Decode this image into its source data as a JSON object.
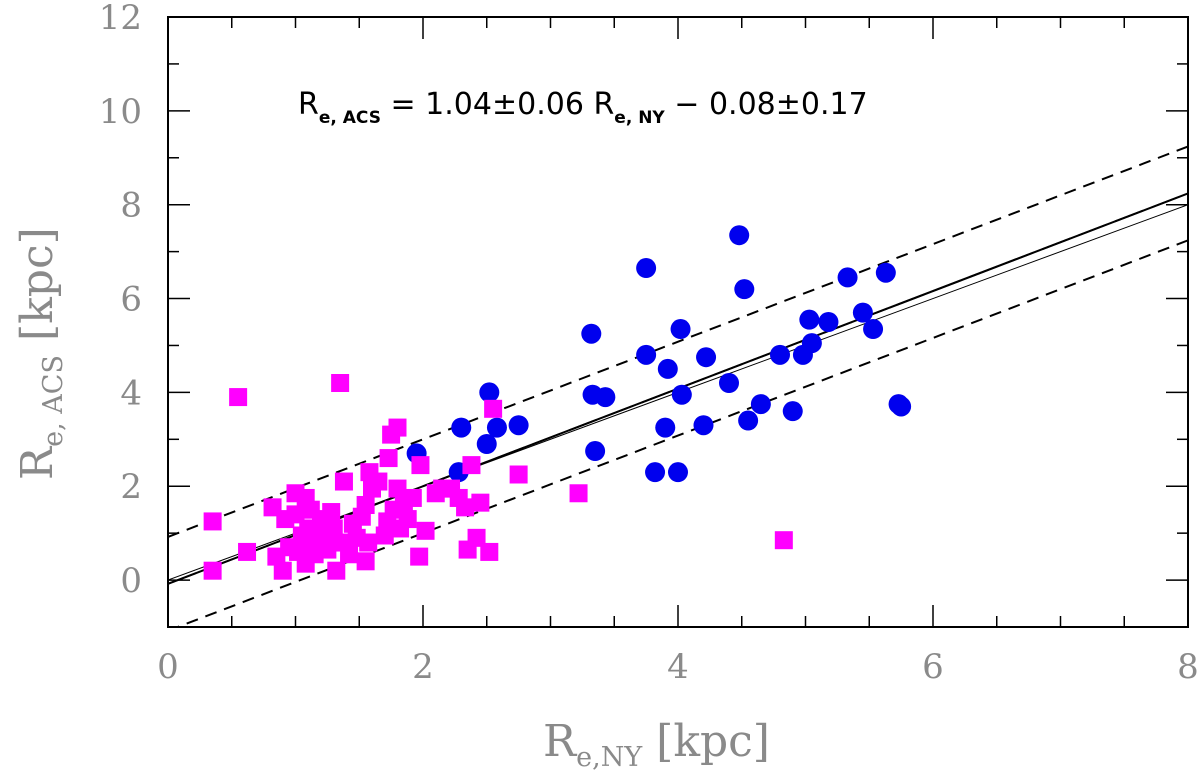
{
  "chart_data": {
    "type": "scatter",
    "xlabel": {
      "main": "R",
      "sub": "e,NY",
      "unit": "[kpc]"
    },
    "ylabel": {
      "main": "R",
      "sub": "e, ACS",
      "unit": "[kpc]"
    },
    "xlim": [
      0,
      8
    ],
    "ylim": [
      -1,
      12
    ],
    "x_ticks": [
      0,
      2,
      4,
      6,
      8
    ],
    "y_ticks": [
      0,
      2,
      4,
      6,
      8,
      10,
      12
    ],
    "colors": {
      "blue": "#0000ee",
      "magenta": "#ff00ff",
      "axis": "#000000"
    },
    "annotation": {
      "lhs": "R",
      "lhs_sub": "e, ACS",
      "mid": " = 1.04±0.06 R",
      "mid_sub": "e, NY",
      "rhs": " − 0.08±0.17"
    },
    "lines": [
      {
        "name": "fit",
        "style": "solid",
        "slope": 1.04,
        "intercept": -0.08
      },
      {
        "name": "one-to-one",
        "style": "thin",
        "slope": 1.0,
        "intercept": 0.0
      },
      {
        "name": "fit-long-dash",
        "style": "longdash",
        "slope": 1.04,
        "intercept": -0.08
      },
      {
        "name": "upper-bound",
        "style": "dashed",
        "slope": 1.04,
        "intercept": 0.92
      },
      {
        "name": "lower-bound",
        "style": "dashed",
        "slope": 1.04,
        "intercept": -1.08
      }
    ],
    "series": [
      {
        "name": "blue-circles",
        "marker": "circle",
        "color": "#0000ee",
        "points": [
          [
            1.95,
            2.7
          ],
          [
            2.28,
            2.3
          ],
          [
            2.3,
            3.25
          ],
          [
            2.5,
            2.9
          ],
          [
            2.52,
            4.0
          ],
          [
            2.58,
            3.25
          ],
          [
            2.75,
            3.3
          ],
          [
            3.32,
            5.25
          ],
          [
            3.33,
            3.95
          ],
          [
            3.35,
            2.75
          ],
          [
            3.43,
            3.9
          ],
          [
            3.75,
            6.65
          ],
          [
            3.75,
            4.8
          ],
          [
            3.82,
            2.3
          ],
          [
            3.9,
            3.25
          ],
          [
            3.92,
            4.5
          ],
          [
            4.0,
            2.3
          ],
          [
            4.02,
            5.35
          ],
          [
            4.03,
            3.95
          ],
          [
            4.2,
            3.3
          ],
          [
            4.22,
            4.75
          ],
          [
            4.4,
            4.2
          ],
          [
            4.48,
            7.35
          ],
          [
            4.52,
            6.2
          ],
          [
            4.55,
            3.4
          ],
          [
            4.65,
            3.75
          ],
          [
            4.8,
            4.8
          ],
          [
            4.9,
            3.6
          ],
          [
            4.98,
            4.8
          ],
          [
            5.03,
            5.55
          ],
          [
            5.05,
            5.05
          ],
          [
            5.18,
            5.5
          ],
          [
            5.33,
            6.45
          ],
          [
            5.45,
            5.7
          ],
          [
            5.53,
            5.35
          ],
          [
            5.63,
            6.55
          ],
          [
            5.73,
            3.75
          ],
          [
            5.75,
            3.7
          ]
        ]
      },
      {
        "name": "magenta-squares",
        "marker": "square",
        "color": "#ff00ff",
        "points": [
          [
            0.35,
            1.25
          ],
          [
            0.35,
            0.2
          ],
          [
            0.55,
            3.9
          ],
          [
            0.62,
            0.6
          ],
          [
            0.82,
            1.55
          ],
          [
            0.85,
            0.5
          ],
          [
            0.9,
            0.2
          ],
          [
            0.92,
            1.3
          ],
          [
            0.95,
            0.7
          ],
          [
            1.0,
            1.85
          ],
          [
            1.0,
            1.4
          ],
          [
            1.02,
            0.6
          ],
          [
            1.05,
            0.95
          ],
          [
            1.08,
            0.35
          ],
          [
            1.08,
            1.75
          ],
          [
            1.1,
            1.1
          ],
          [
            1.12,
            1.5
          ],
          [
            1.15,
            0.8
          ],
          [
            1.15,
            0.55
          ],
          [
            1.2,
            1.3
          ],
          [
            1.22,
            0.95
          ],
          [
            1.25,
            0.65
          ],
          [
            1.28,
            1.45
          ],
          [
            1.3,
            1.1
          ],
          [
            1.32,
            0.2
          ],
          [
            1.35,
            0.8
          ],
          [
            1.35,
            4.2
          ],
          [
            1.38,
            2.1
          ],
          [
            1.42,
            0.55
          ],
          [
            1.45,
            1.2
          ],
          [
            1.48,
            0.9
          ],
          [
            1.52,
            1.35
          ],
          [
            1.55,
            1.6
          ],
          [
            1.55,
            0.4
          ],
          [
            1.57,
            0.8
          ],
          [
            1.58,
            2.3
          ],
          [
            1.6,
            1.95
          ],
          [
            1.65,
            2.1
          ],
          [
            1.7,
            0.95
          ],
          [
            1.72,
            1.25
          ],
          [
            1.73,
            2.6
          ],
          [
            1.75,
            3.1
          ],
          [
            1.77,
            1.5
          ],
          [
            1.8,
            3.25
          ],
          [
            1.8,
            1.95
          ],
          [
            1.82,
            1.1
          ],
          [
            1.85,
            1.6
          ],
          [
            1.88,
            1.3
          ],
          [
            1.92,
            1.75
          ],
          [
            1.97,
            0.5
          ],
          [
            1.98,
            2.45
          ],
          [
            2.02,
            1.05
          ],
          [
            2.1,
            1.85
          ],
          [
            2.15,
            1.95
          ],
          [
            2.22,
            1.95
          ],
          [
            2.28,
            1.75
          ],
          [
            2.33,
            1.55
          ],
          [
            2.35,
            0.65
          ],
          [
            2.38,
            2.45
          ],
          [
            2.42,
            0.9
          ],
          [
            2.45,
            1.65
          ],
          [
            2.52,
            0.6
          ],
          [
            2.55,
            3.65
          ],
          [
            2.75,
            2.25
          ],
          [
            3.22,
            1.85
          ],
          [
            4.83,
            0.85
          ]
        ]
      }
    ]
  }
}
